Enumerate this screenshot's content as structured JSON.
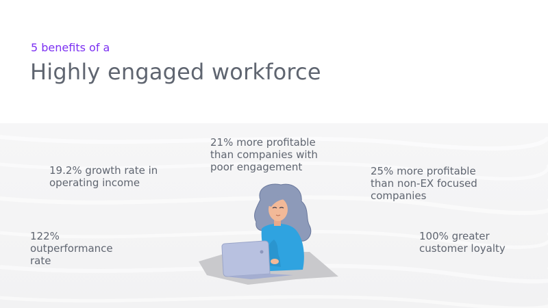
{
  "header": {
    "subtitle": "5 benefits of a",
    "title": "Highly engaged workforce"
  },
  "benefits": [
    {
      "lines": [
        "19.2% growth rate in",
        "operating income"
      ]
    },
    {
      "lines": [
        "122%",
        "outperformance",
        "rate"
      ]
    },
    {
      "lines": [
        "21% more profitable",
        "than companies with",
        "poor engagement"
      ]
    },
    {
      "lines": [
        "25% more profitable",
        "than non-EX focused",
        "companies"
      ]
    },
    {
      "lines": [
        "100% greater",
        "customer loyalty"
      ]
    }
  ],
  "colors": {
    "accent": "#7b2ff2",
    "text": "#5f6570",
    "band": "#f4f4f5",
    "sweater": "#2fa3e0",
    "hair": "#8896b8",
    "laptop": "#b8c1e0"
  },
  "illustration": {
    "icon": "woman-with-laptop-illustration"
  }
}
